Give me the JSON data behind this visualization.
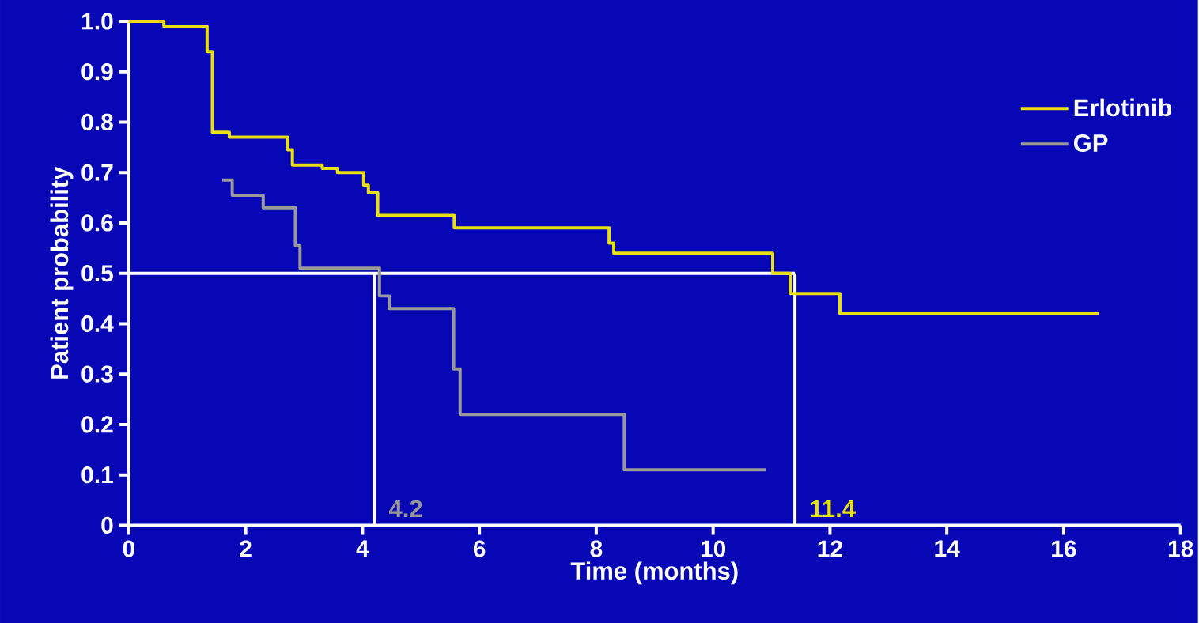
{
  "chart_data": {
    "type": "step",
    "xlabel": "Time (months)",
    "ylabel": "Patient probability",
    "xlim": [
      0,
      18
    ],
    "xticks": [
      0,
      2,
      4,
      6,
      8,
      10,
      12,
      14,
      16,
      18
    ],
    "ylim": [
      0,
      1
    ],
    "yticks": [
      0,
      0.1,
      0.2,
      0.3,
      0.4,
      0.5,
      0.6,
      0.7,
      0.8,
      0.9,
      {
        "value": 1,
        "label": "1.0"
      }
    ],
    "legend": "top right",
    "grid": false,
    "marker": "none",
    "line_style": "solid",
    "series": [
      {
        "name": "Erlotinib",
        "color": "#e8e010",
        "x": [
          0,
          0.6,
          1.34,
          1.43,
          1.72,
          2.72,
          2.8,
          3.31,
          3.57,
          4.02,
          4.1,
          4.26,
          5.57,
          8.22,
          8.3,
          11.02,
          11.32,
          12.17,
          16.6
        ],
        "values": [
          1.0,
          0.99,
          0.94,
          0.78,
          0.77,
          0.745,
          0.715,
          0.708,
          0.7,
          0.675,
          0.66,
          0.615,
          0.59,
          0.56,
          0.54,
          0.5,
          0.46,
          0.42,
          0.42
        ]
      },
      {
        "name": "GP",
        "color": "#999999",
        "x": [
          1.6,
          1.77,
          2.3,
          2.85,
          2.93,
          4.29,
          4.46,
          5.56,
          5.67,
          8.48,
          10.9
        ],
        "values": [
          0.685,
          0.655,
          0.63,
          0.555,
          0.51,
          0.455,
          0.43,
          0.31,
          0.22,
          0.11,
          0.11
        ]
      }
    ],
    "ref_lines": [
      {
        "axis": "y",
        "value": 0.5,
        "color": "#ffffff"
      },
      {
        "axis": "x",
        "value": 11.4,
        "label": "11.4",
        "color": "#ffffff"
      },
      {
        "axis": "x",
        "value": 4.2,
        "label": "4.2",
        "color": "#ffffff"
      }
    ]
  }
}
